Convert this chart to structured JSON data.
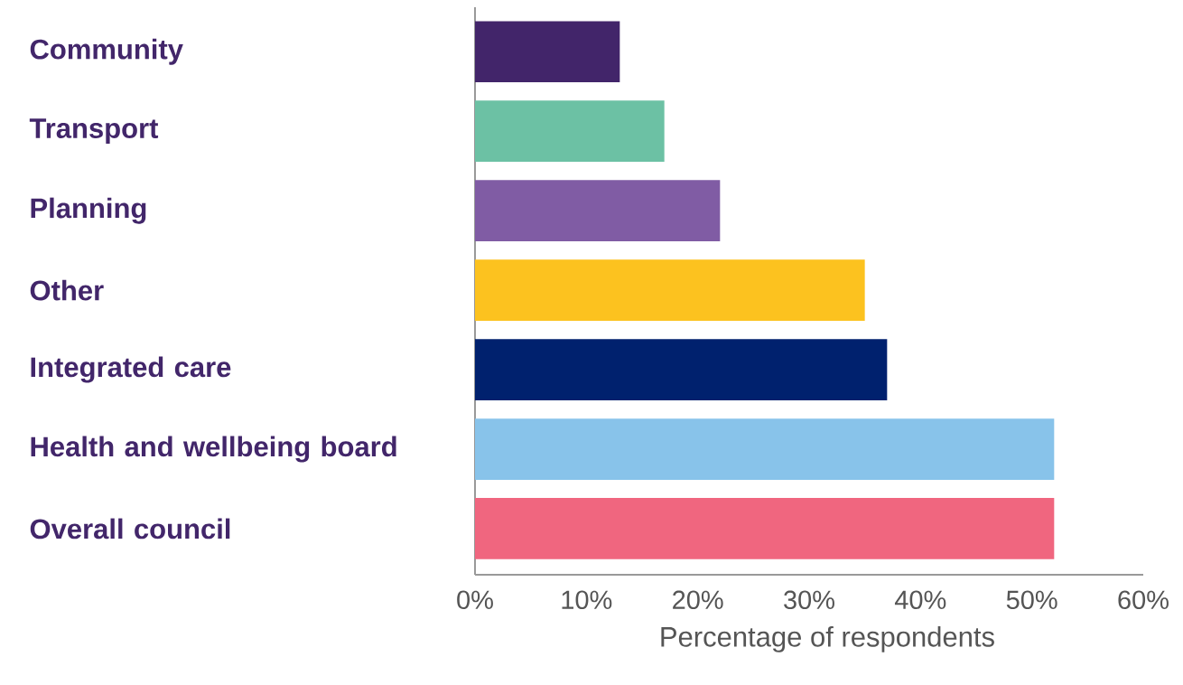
{
  "chart_data": {
    "type": "bar",
    "orientation": "horizontal",
    "categories": [
      "Community",
      "Transport",
      "Planning",
      "Other",
      "Integrated care",
      "Health and wellbeing board",
      "Overall council"
    ],
    "values": [
      13,
      17,
      22,
      35,
      37,
      52,
      52
    ],
    "colors": [
      "#42256a",
      "#6cc1a4",
      "#805ca4",
      "#fcc21f",
      "#00216e",
      "#88c3ea",
      "#f0667f"
    ],
    "xlim": [
      0,
      60
    ],
    "xticks": [
      {
        "value": 0,
        "label": "0%"
      },
      {
        "value": 10,
        "label": "10%"
      },
      {
        "value": 20,
        "label": "20%"
      },
      {
        "value": 30,
        "label": "30%"
      },
      {
        "value": 40,
        "label": "40%"
      },
      {
        "value": 50,
        "label": "50%"
      },
      {
        "value": 60,
        "label": "60%"
      }
    ],
    "xlabel": "Percentage of respondents"
  }
}
